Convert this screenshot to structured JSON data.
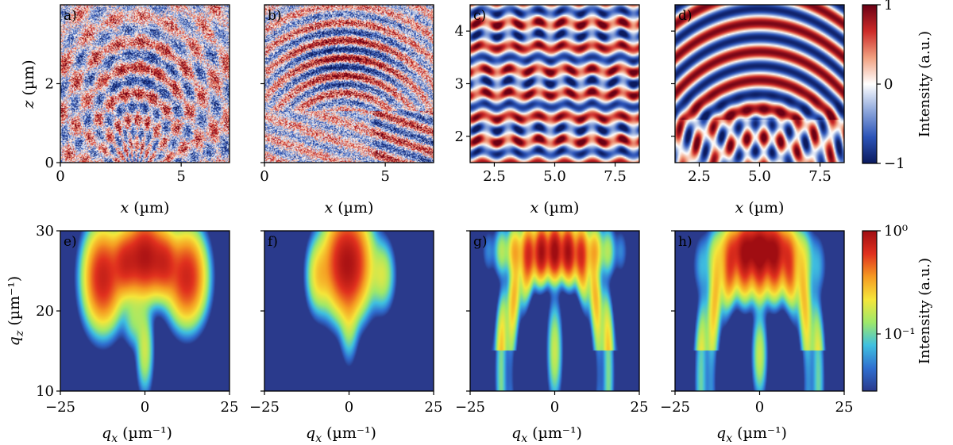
{
  "chart_data": {
    "type": "heatmap",
    "top_row": {
      "x_axis_label": "(µm)",
      "x_axis_symbol": "x",
      "y_axis_label": "(µm)",
      "y_axis_symbol": "z",
      "colorbar": {
        "label": "Intensity (a.u.)",
        "ticks": [
          "1",
          "0",
          "−1"
        ],
        "range": [
          -1,
          1
        ],
        "colormap": [
          "#0b1a5e",
          "#2c54b8",
          "#8fa8dc",
          "#ffffff",
          "#f1a080",
          "#cc2a28",
          "#6a0014"
        ]
      },
      "panels": [
        {
          "tag": "a)",
          "xlim": [
            0,
            7
          ],
          "ylim": [
            0,
            4
          ],
          "x_ticks": [
            "0",
            "5"
          ],
          "y_ticks": [
            "0",
            "2"
          ],
          "style": "measured"
        },
        {
          "tag": "b)",
          "xlim": [
            0,
            7
          ],
          "ylim": [
            0,
            4
          ],
          "x_ticks": [
            "0",
            "5"
          ],
          "y_ticks": [],
          "style": "measured"
        },
        {
          "tag": "c)",
          "xlim": [
            1.5,
            8.5
          ],
          "ylim": [
            1.5,
            4.5
          ],
          "x_ticks": [
            "2.5",
            "5.0",
            "7.5"
          ],
          "y_ticks": [
            "2",
            "3",
            "4"
          ],
          "style": "simulated"
        },
        {
          "tag": "d)",
          "xlim": [
            1.5,
            8.5
          ],
          "ylim": [
            1.5,
            4.5
          ],
          "x_ticks": [
            "2.5",
            "5.0",
            "7.5"
          ],
          "y_ticks": [],
          "style": "simulated"
        }
      ]
    },
    "bottom_row": {
      "x_axis_label": "(µm⁻¹)",
      "x_axis_symbol": "qx",
      "y_axis_label": "(µm⁻¹)",
      "y_axis_symbol": "qz",
      "colorbar": {
        "label": "Intensity (a.u.)",
        "ticks": [
          "10⁰",
          "10⁻¹"
        ],
        "scale": "log",
        "colormap": [
          "#2a3a8c",
          "#2f6fd0",
          "#3fc0e0",
          "#9ee86a",
          "#f5e63a",
          "#f59a22",
          "#e0301e",
          "#a00d12"
        ]
      },
      "panels": [
        {
          "tag": "e)",
          "xlim": [
            -25,
            25
          ],
          "ylim": [
            10,
            30
          ],
          "x_ticks": [
            "−25",
            "0",
            "25"
          ],
          "y_ticks": [
            "10",
            "20",
            "30"
          ]
        },
        {
          "tag": "f)",
          "xlim": [
            -25,
            25
          ],
          "ylim": [
            10,
            30
          ],
          "x_ticks": [
            "−25",
            "0",
            "25"
          ],
          "y_ticks": []
        },
        {
          "tag": "g)",
          "xlim": [
            -25,
            25
          ],
          "ylim": [
            10,
            30
          ],
          "x_ticks": [
            "−25",
            "0",
            "25"
          ],
          "y_ticks": []
        },
        {
          "tag": "h)",
          "xlim": [
            -25,
            25
          ],
          "ylim": [
            10,
            30
          ],
          "x_ticks": [
            "−25",
            "0",
            "25"
          ],
          "y_ticks": []
        }
      ]
    }
  }
}
